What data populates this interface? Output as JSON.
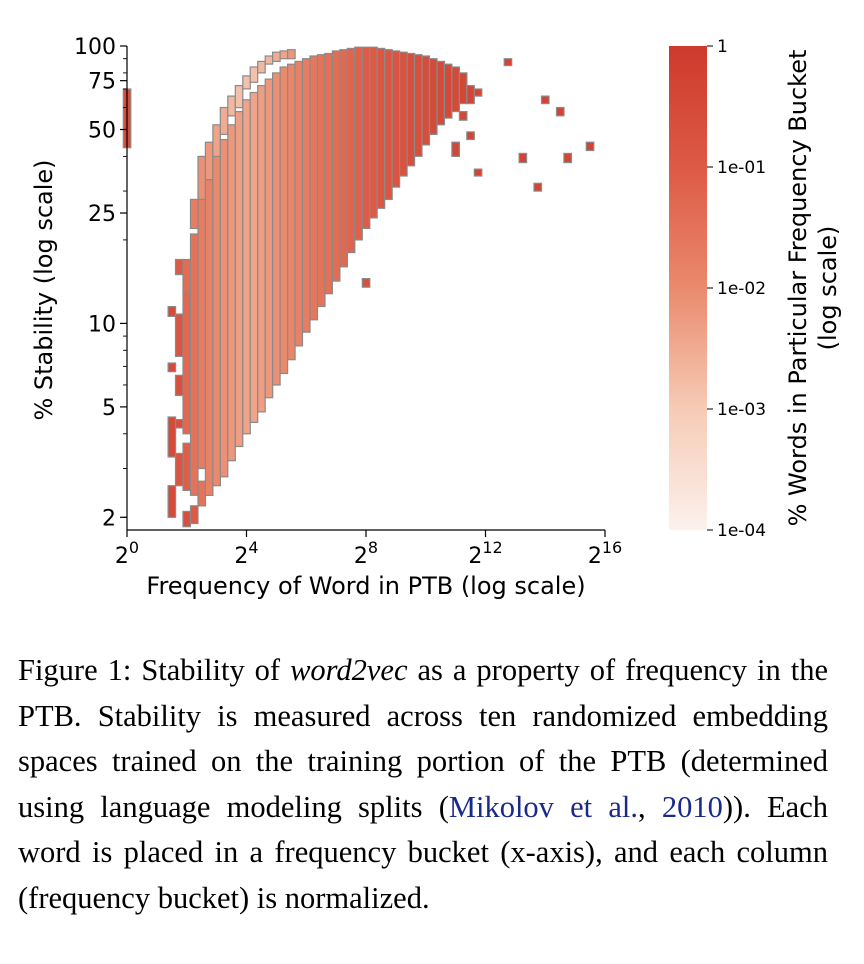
{
  "chart_data": {
    "type": "heatmap",
    "xlabel": "Frequency of Word in PTB (log scale)",
    "ylabel": "% Stability (log scale)",
    "x_scale": "log2",
    "y_scale": "log",
    "xlim": [
      1,
      65536
    ],
    "ylim": [
      1.8,
      100
    ],
    "x_ticks": [
      {
        "value": 1,
        "base": "2",
        "exp": "0"
      },
      {
        "value": 16,
        "base": "2",
        "exp": "4"
      },
      {
        "value": 256,
        "base": "2",
        "exp": "8"
      },
      {
        "value": 4096,
        "base": "2",
        "exp": "12"
      },
      {
        "value": 65536,
        "base": "2",
        "exp": "16"
      }
    ],
    "y_ticks": [
      {
        "value": 100,
        "label": "100"
      },
      {
        "value": 75,
        "label": "75"
      },
      {
        "value": 50,
        "label": "50"
      },
      {
        "value": 25,
        "label": "25"
      },
      {
        "value": 10,
        "label": "10"
      },
      {
        "value": 5,
        "label": "5"
      },
      {
        "value": 2,
        "label": "2"
      }
    ],
    "colorbar": {
      "label_line1": "% Words in Particular Frequency Bucket",
      "label_line2": "(log scale)",
      "scale": "log",
      "range": [
        0.0001,
        1
      ],
      "ticks": [
        {
          "value": 1,
          "label": "1"
        },
        {
          "value": 0.1,
          "label": "1e-01"
        },
        {
          "value": 0.01,
          "label": "1e-02"
        },
        {
          "value": 0.001,
          "label": "1e-03"
        },
        {
          "value": 0.0001,
          "label": "1e-04"
        }
      ],
      "colors": [
        "#fcf1ec",
        "#f6cbb6",
        "#ea8a6d",
        "#dd5a45",
        "#cd3a2c"
      ]
    },
    "columns": [
      {
        "x": 1,
        "cells": [
          {
            "y_lo": 43,
            "y_hi": 70,
            "v": 0.25
          }
        ]
      },
      {
        "x": 2.83,
        "cells": [
          {
            "y_lo": 2,
            "y_hi": 2.6,
            "v": 0.3
          },
          {
            "y_lo": 3.3,
            "y_hi": 4.6,
            "v": 0.3
          },
          {
            "y_lo": 6.7,
            "y_hi": 7.2,
            "v": 0.3
          },
          {
            "y_lo": 10.6,
            "y_hi": 11.5,
            "v": 0.3
          }
        ]
      },
      {
        "x": 3.36,
        "cells": [
          {
            "y_lo": 2.6,
            "y_hi": 3.4,
            "v": 0.15
          },
          {
            "y_lo": 4.2,
            "y_hi": 4.5,
            "v": 0.2
          },
          {
            "y_lo": 5.5,
            "y_hi": 6.5,
            "v": 0.2
          },
          {
            "y_lo": 7.6,
            "y_hi": 10.8,
            "v": 0.15
          },
          {
            "y_lo": 15,
            "y_hi": 17,
            "v": 0.1
          }
        ]
      },
      {
        "x": 4,
        "cells": [
          {
            "y_lo": 1.85,
            "y_hi": 2.1,
            "v": 0.2
          },
          {
            "y_lo": 2.5,
            "y_hi": 3.7,
            "v": 0.08
          },
          {
            "y_lo": 4,
            "y_hi": 13,
            "v": 0.05
          },
          {
            "y_lo": 13,
            "y_hi": 17,
            "v": 0.04
          }
        ]
      },
      {
        "x": 4.76,
        "cells": [
          {
            "y_lo": 1.9,
            "y_hi": 2.2,
            "v": 0.1
          },
          {
            "y_lo": 2.4,
            "y_hi": 21,
            "v": 0.03
          },
          {
            "y_lo": 22,
            "y_hi": 28,
            "v": 0.02
          }
        ]
      },
      {
        "x": 5.66,
        "cells": [
          {
            "y_lo": 2.2,
            "y_hi": 2.7,
            "v": 0.03
          },
          {
            "y_lo": 3,
            "y_hi": 28,
            "v": 0.02
          },
          {
            "y_lo": 28,
            "y_hi": 40,
            "v": 0.008
          }
        ]
      },
      {
        "x": 6.73,
        "cells": [
          {
            "y_lo": 2.4,
            "y_hi": 33,
            "v": 0.015
          },
          {
            "y_lo": 33,
            "y_hi": 45,
            "v": 0.006
          }
        ]
      },
      {
        "x": 8,
        "cells": [
          {
            "y_lo": 2.6,
            "y_hi": 40,
            "v": 0.01
          },
          {
            "y_lo": 40,
            "y_hi": 52,
            "v": 0.004
          }
        ]
      },
      {
        "x": 9.51,
        "cells": [
          {
            "y_lo": 2.8,
            "y_hi": 46,
            "v": 0.008
          },
          {
            "y_lo": 48,
            "y_hi": 60,
            "v": 0.003
          }
        ]
      },
      {
        "x": 11.31,
        "cells": [
          {
            "y_lo": 3.2,
            "y_hi": 52,
            "v": 0.006
          },
          {
            "y_lo": 56,
            "y_hi": 66,
            "v": 0.002
          }
        ]
      },
      {
        "x": 13.45,
        "cells": [
          {
            "y_lo": 3.6,
            "y_hi": 58,
            "v": 0.005
          },
          {
            "y_lo": 60,
            "y_hi": 72,
            "v": 0.0015
          }
        ]
      },
      {
        "x": 16,
        "cells": [
          {
            "y_lo": 4,
            "y_hi": 64,
            "v": 0.004
          },
          {
            "y_lo": 70,
            "y_hi": 78,
            "v": 0.0015
          }
        ]
      },
      {
        "x": 19.03,
        "cells": [
          {
            "y_lo": 4.4,
            "y_hi": 68,
            "v": 0.004
          },
          {
            "y_lo": 74,
            "y_hi": 84,
            "v": 0.0015
          }
        ]
      },
      {
        "x": 22.63,
        "cells": [
          {
            "y_lo": 4.8,
            "y_hi": 72,
            "v": 0.005
          },
          {
            "y_lo": 80,
            "y_hi": 88,
            "v": 0.002
          }
        ]
      },
      {
        "x": 26.91,
        "cells": [
          {
            "y_lo": 5.4,
            "y_hi": 76,
            "v": 0.006
          },
          {
            "y_lo": 86,
            "y_hi": 92,
            "v": 0.002
          }
        ]
      },
      {
        "x": 32,
        "cells": [
          {
            "y_lo": 6,
            "y_hi": 80,
            "v": 0.008
          },
          {
            "y_lo": 88,
            "y_hi": 95,
            "v": 0.003
          }
        ]
      },
      {
        "x": 38.05,
        "cells": [
          {
            "y_lo": 6.6,
            "y_hi": 84,
            "v": 0.01
          },
          {
            "y_lo": 90,
            "y_hi": 96,
            "v": 0.004
          }
        ]
      },
      {
        "x": 45.25,
        "cells": [
          {
            "y_lo": 7.4,
            "y_hi": 86,
            "v": 0.012
          },
          {
            "y_lo": 90,
            "y_hi": 97,
            "v": 0.006
          }
        ]
      },
      {
        "x": 53.82,
        "cells": [
          {
            "y_lo": 8.3,
            "y_hi": 88,
            "v": 0.015
          }
        ]
      },
      {
        "x": 64,
        "cells": [
          {
            "y_lo": 9.3,
            "y_hi": 90,
            "v": 0.02
          }
        ]
      },
      {
        "x": 76.11,
        "cells": [
          {
            "y_lo": 10.3,
            "y_hi": 92,
            "v": 0.025
          }
        ]
      },
      {
        "x": 90.51,
        "cells": [
          {
            "y_lo": 11.5,
            "y_hi": 93,
            "v": 0.03
          }
        ]
      },
      {
        "x": 107.63,
        "cells": [
          {
            "y_lo": 12.8,
            "y_hi": 94,
            "v": 0.035
          }
        ]
      },
      {
        "x": 128,
        "cells": [
          {
            "y_lo": 14.2,
            "y_hi": 96,
            "v": 0.04
          }
        ]
      },
      {
        "x": 152.22,
        "cells": [
          {
            "y_lo": 16,
            "y_hi": 97,
            "v": 0.05
          }
        ]
      },
      {
        "x": 181.02,
        "cells": [
          {
            "y_lo": 18,
            "y_hi": 98,
            "v": 0.06
          }
        ]
      },
      {
        "x": 215.27,
        "cells": [
          {
            "y_lo": 20,
            "y_hi": 99,
            "v": 0.07
          }
        ]
      },
      {
        "x": 256,
        "cells": [
          {
            "y_lo": 13.5,
            "y_hi": 14.5,
            "v": 0.2
          },
          {
            "y_lo": 22,
            "y_hi": 99,
            "v": 0.09
          }
        ]
      },
      {
        "x": 304.44,
        "cells": [
          {
            "y_lo": 24,
            "y_hi": 99,
            "v": 0.1
          }
        ]
      },
      {
        "x": 362.04,
        "cells": [
          {
            "y_lo": 26,
            "y_hi": 98,
            "v": 0.12
          }
        ]
      },
      {
        "x": 430.54,
        "cells": [
          {
            "y_lo": 28,
            "y_hi": 97,
            "v": 0.14
          }
        ]
      },
      {
        "x": 512,
        "cells": [
          {
            "y_lo": 31,
            "y_hi": 96,
            "v": 0.15
          }
        ]
      },
      {
        "x": 608.87,
        "cells": [
          {
            "y_lo": 34,
            "y_hi": 95,
            "v": 0.17
          }
        ]
      },
      {
        "x": 724.08,
        "cells": [
          {
            "y_lo": 37,
            "y_hi": 94,
            "v": 0.2
          }
        ]
      },
      {
        "x": 861.08,
        "cells": [
          {
            "y_lo": 40,
            "y_hi": 93,
            "v": 0.22
          }
        ]
      },
      {
        "x": 1024,
        "cells": [
          {
            "y_lo": 44,
            "y_hi": 92,
            "v": 0.25
          }
        ]
      },
      {
        "x": 1217.75,
        "cells": [
          {
            "y_lo": 48,
            "y_hi": 90,
            "v": 0.3
          }
        ]
      },
      {
        "x": 1448.15,
        "cells": [
          {
            "y_lo": 52,
            "y_hi": 88,
            "v": 0.3
          }
        ]
      },
      {
        "x": 1722.16,
        "cells": [
          {
            "y_lo": 55,
            "y_hi": 86,
            "v": 0.35
          }
        ]
      },
      {
        "x": 2048,
        "cells": [
          {
            "y_lo": 40,
            "y_hi": 45,
            "v": 0.4
          },
          {
            "y_lo": 58,
            "y_hi": 84,
            "v": 0.35
          }
        ]
      },
      {
        "x": 2435.5,
        "cells": [
          {
            "y_lo": 54,
            "y_hi": 58,
            "v": 0.4
          },
          {
            "y_lo": 62,
            "y_hi": 80,
            "v": 0.4
          }
        ]
      },
      {
        "x": 2896.31,
        "cells": [
          {
            "y_lo": 46,
            "y_hi": 49,
            "v": 0.45
          },
          {
            "y_lo": 62,
            "y_hi": 72,
            "v": 0.45
          }
        ]
      },
      {
        "x": 3444.31,
        "cells": [
          {
            "y_lo": 34,
            "y_hi": 36,
            "v": 0.5
          },
          {
            "y_lo": 66,
            "y_hi": 70,
            "v": 0.45
          }
        ]
      },
      {
        "x": 6888.62,
        "cells": [
          {
            "y_lo": 85,
            "y_hi": 90,
            "v": 0.5
          }
        ]
      },
      {
        "x": 9741.98,
        "cells": [
          {
            "y_lo": 38,
            "y_hi": 41,
            "v": 0.5
          }
        ]
      },
      {
        "x": 13777.2,
        "cells": [
          {
            "y_lo": 30,
            "y_hi": 32,
            "v": 0.5
          }
        ]
      },
      {
        "x": 16384,
        "cells": [
          {
            "y_lo": 62,
            "y_hi": 66,
            "v": 0.5
          }
        ]
      },
      {
        "x": 23170.5,
        "cells": [
          {
            "y_lo": 56,
            "y_hi": 60,
            "v": 0.5
          }
        ]
      },
      {
        "x": 27554.5,
        "cells": [
          {
            "y_lo": 38,
            "y_hi": 41,
            "v": 0.5
          }
        ]
      },
      {
        "x": 46340.9,
        "cells": [
          {
            "y_lo": 42,
            "y_hi": 45,
            "v": 0.5
          }
        ]
      }
    ]
  },
  "caption": {
    "part1": "Figure 1:  Stability of ",
    "italic": "word2vec",
    "part2": " as a property of frequency in the PTB. Stability is measured across ten randomized embedding spaces trained on the training portion of the PTB (determined using language modeling splits (",
    "cite_authors": "Mikolov et al.",
    "cite_sep": ", ",
    "cite_year": "2010",
    "part3": ")). Each word is placed in a frequency bucket (x-axis), and each column (frequency bucket) is normalized."
  }
}
